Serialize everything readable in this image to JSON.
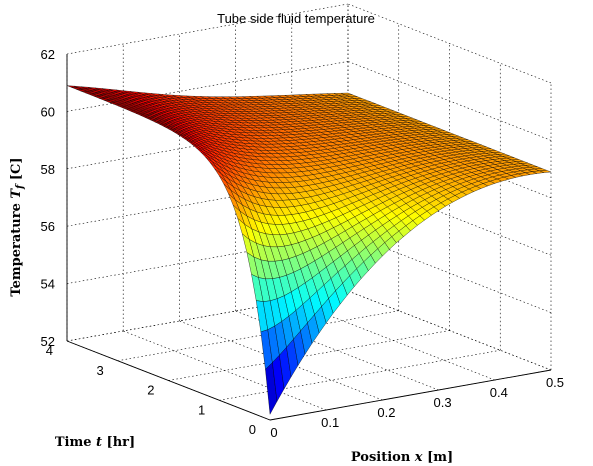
{
  "chart_data": {
    "type": "surface",
    "title": "Tube side fluid temperature",
    "xlabel": "Position x [m]",
    "xlabel_pre": "Position ",
    "xlabel_var": "x",
    "xlabel_post": " [m]",
    "ylabel": "Time t [hr]",
    "ylabel_pre": "Time ",
    "ylabel_var": "t",
    "ylabel_post": " [hr]",
    "zlabel": "Temperature Tf [C]",
    "zlabel_pre": "Temperature ",
    "zlabel_var": "T",
    "zlabel_sub": "f",
    "zlabel_post": " [C]",
    "xlim": [
      0,
      0.5
    ],
    "ylim": [
      0,
      4
    ],
    "zlim": [
      52,
      62
    ],
    "x_ticks": [
      "0",
      "0.1",
      "0.2",
      "0.3",
      "0.4",
      "0.5"
    ],
    "y_ticks": [
      "0",
      "1",
      "2",
      "3",
      "4"
    ],
    "z_ticks": [
      "52",
      "54",
      "56",
      "58",
      "60",
      "62"
    ],
    "grid": true,
    "colormap": "jet",
    "surface_samples": {
      "x": [
        0,
        0.1,
        0.2,
        0.3,
        0.4,
        0.5
      ],
      "t": [
        0,
        1,
        2,
        3,
        4
      ],
      "values": [
        [
          52.2,
          54.3,
          56.2,
          57.8,
          58.9,
          58.9
        ],
        [
          57.4,
          57.9,
          58.3,
          58.6,
          58.9,
          58.9
        ],
        [
          59.6,
          59.6,
          59.4,
          59.2,
          59.0,
          58.9
        ],
        [
          60.5,
          60.3,
          59.9,
          59.4,
          59.0,
          58.9
        ],
        [
          60.9,
          60.6,
          60.1,
          59.5,
          59.1,
          58.9
        ]
      ]
    }
  }
}
